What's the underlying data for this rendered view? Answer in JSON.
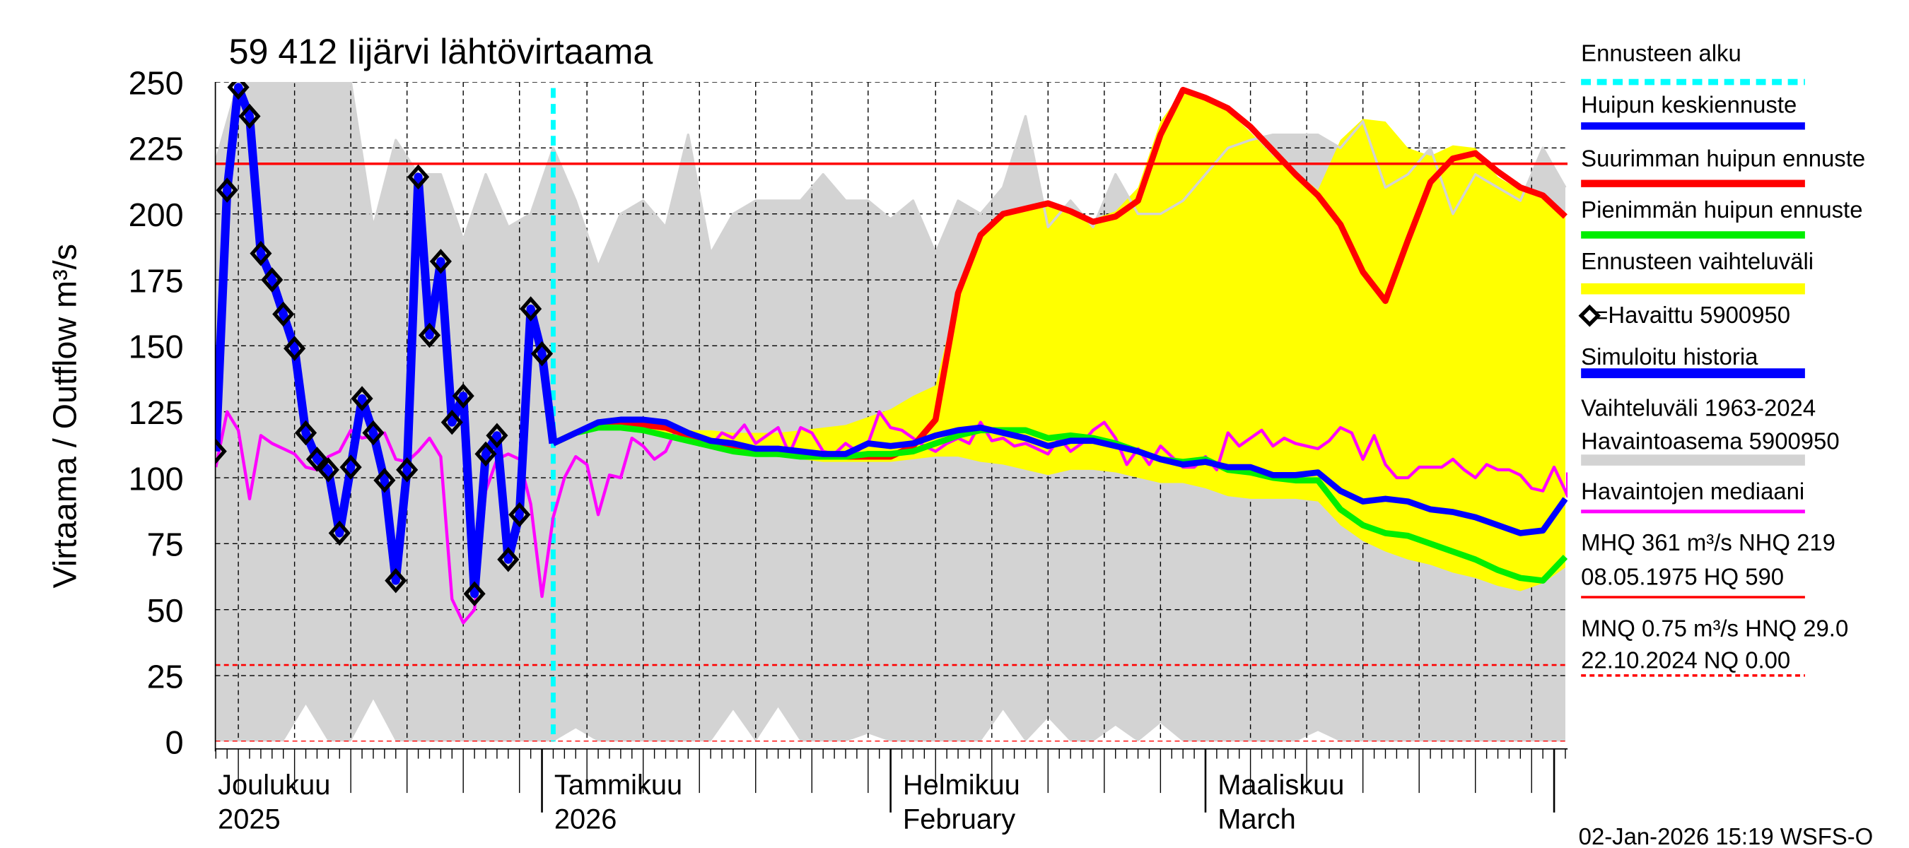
{
  "chart_data": {
    "type": "line",
    "title": "59 412 Iijärvi lähtövirtaama",
    "ylabel": "Virtaama / Outflow    m³/s",
    "xlabel": "",
    "ylim": [
      0,
      250
    ],
    "xlim": [
      "2025-12-03",
      "2026-04-02"
    ],
    "grid": true,
    "legend_position": "right",
    "y_ticks": [
      "0",
      "25",
      "50",
      "75",
      "100",
      "125",
      "150",
      "175",
      "200",
      "225",
      "250"
    ],
    "month_labels": [
      {
        "date": "2025-12-01",
        "line1": "Joulukuu",
        "line2": "2025"
      },
      {
        "date": "2026-01-01",
        "line1": "Tammikuu",
        "line2": "2026"
      },
      {
        "date": "2026-02-01",
        "line1": "Helmikuu",
        "line2": "February"
      },
      {
        "date": "2026-03-01",
        "line1": "Maaliskuu",
        "line2": "March"
      }
    ],
    "forecast_start": "2026-01-02",
    "reference_lines": [
      {
        "name": "NHQ",
        "value": 219,
        "style": "solid",
        "color": "#ff0000"
      },
      {
        "name": "HNQ",
        "value": 29,
        "style": "dashed",
        "color": "#ff0000"
      },
      {
        "name": "NQ",
        "value": 0,
        "style": "dashed",
        "color": "#ff0000"
      }
    ],
    "series": {
      "observed": {
        "name": "=Havaittu 5900950",
        "start": "2025-12-03",
        "step_days": 1,
        "values": [
          110,
          209,
          248,
          237,
          185,
          175,
          162,
          149,
          117,
          107,
          103,
          79,
          104,
          130,
          117,
          99,
          61,
          103,
          214,
          154,
          182,
          121,
          131,
          56,
          109,
          116,
          69,
          86,
          164,
          147
        ]
      },
      "simulated_history": {
        "name": "Simuloitu historia",
        "color": "#0000ff",
        "start": "2025-12-03",
        "step_days": 1,
        "values": [
          110,
          209,
          248,
          237,
          185,
          175,
          162,
          149,
          117,
          107,
          103,
          79,
          104,
          130,
          117,
          99,
          61,
          103,
          214,
          154,
          182,
          121,
          131,
          56,
          109,
          116,
          69,
          86,
          164,
          147
        ]
      },
      "forecast_mean": {
        "name": "Huipun keskiennuste",
        "color": "#0000ff",
        "start": "2026-01-02",
        "step_days": 2,
        "values": [
          113,
          117,
          121,
          122,
          122,
          121,
          117,
          114,
          113,
          111,
          111,
          110,
          109,
          109,
          113,
          112,
          113,
          116,
          118,
          119,
          117,
          115,
          112,
          114,
          114,
          112,
          110,
          107,
          105,
          106,
          104,
          104,
          101,
          101,
          102,
          95,
          91,
          92,
          91,
          88,
          87,
          85,
          82,
          79,
          80,
          92
        ]
      },
      "forecast_max": {
        "name": "Suurimman huipun ennuste",
        "color": "#ff0000",
        "start": "2026-01-02",
        "step_days": 2,
        "values": [
          113,
          117,
          120,
          120,
          120,
          119,
          116,
          113,
          111,
          110,
          109,
          109,
          108,
          108,
          108,
          108,
          112,
          122,
          170,
          192,
          200,
          202,
          204,
          201,
          197,
          199,
          205,
          230,
          247,
          244,
          240,
          233,
          224,
          215,
          207,
          196,
          178,
          167,
          190,
          212,
          221,
          223,
          216,
          210,
          207,
          199
        ]
      },
      "forecast_min": {
        "name": "Pienimmän huipun ennuste",
        "color": "#00ee00",
        "start": "2026-01-02",
        "step_days": 2,
        "values": [
          113,
          117,
          119,
          119,
          118,
          116,
          114,
          112,
          110,
          109,
          109,
          108,
          108,
          108,
          109,
          109,
          110,
          113,
          116,
          118,
          118,
          118,
          115,
          116,
          115,
          113,
          110,
          107,
          106,
          107,
          103,
          102,
          100,
          99,
          99,
          88,
          82,
          79,
          78,
          75,
          72,
          69,
          65,
          62,
          61,
          70
        ]
      },
      "forecast_range": {
        "name": "Ennusteen vaihteluväli",
        "color": "#ffff00",
        "start": "2026-01-02",
        "step_days": 2,
        "upper": [
          113,
          118,
          121,
          122,
          122,
          121,
          118,
          118,
          117,
          117,
          117,
          118,
          119,
          120,
          123,
          126,
          131,
          135,
          170,
          193,
          200,
          203,
          205,
          201,
          198,
          201,
          210,
          235,
          247,
          244,
          239,
          231,
          222,
          216,
          209,
          228,
          236,
          235,
          225,
          222,
          226,
          225,
          214,
          209,
          208,
          200
        ],
        "lower": [
          113,
          117,
          119,
          119,
          118,
          116,
          114,
          112,
          111,
          109,
          108,
          107,
          106,
          106,
          106,
          106,
          107,
          108,
          108,
          106,
          105,
          103,
          101,
          103,
          103,
          102,
          100,
          98,
          98,
          96,
          93,
          92,
          92,
          92,
          91,
          82,
          76,
          72,
          69,
          67,
          64,
          62,
          59,
          57,
          60,
          66
        ]
      },
      "historical_range": {
        "name": "Vaihteluväli 1963-2024 Havaintoasema 5900950",
        "color": "#d3d3d3",
        "start": "2025-12-03",
        "step_days": 2,
        "upper": [
          220,
          250,
          250,
          250,
          250,
          250,
          250,
          195,
          228,
          215,
          215,
          190,
          215,
          195,
          200,
          225,
          205,
          180,
          200,
          205,
          195,
          230,
          185,
          200,
          205,
          205,
          205,
          215,
          205,
          205,
          198,
          205,
          185,
          205,
          200,
          210,
          237,
          195,
          205,
          195,
          215,
          200,
          200,
          205,
          215,
          225,
          228,
          230,
          230,
          230,
          225,
          235,
          210,
          215,
          225,
          200,
          215,
          210,
          205,
          225,
          210
        ],
        "lower": [
          0,
          0,
          0,
          0,
          14,
          0,
          0,
          16,
          0,
          0,
          0,
          0,
          0,
          0,
          0,
          0,
          5,
          0,
          0,
          0,
          0,
          0,
          0,
          12,
          0,
          13,
          0,
          0,
          0,
          3,
          0,
          0,
          0,
          0,
          0,
          12,
          0,
          9,
          0,
          0,
          6,
          0,
          7,
          0,
          0,
          0,
          0,
          0,
          0,
          4,
          0,
          0,
          0,
          0,
          0,
          0,
          0,
          0,
          0,
          0,
          0
        ]
      },
      "median": {
        "name": "Havaintojen mediaani",
        "color": "#ff00ff",
        "start": "2025-12-03",
        "step_days": 1,
        "values": [
          104,
          125,
          118,
          92,
          116,
          113,
          111,
          109,
          104,
          103,
          108,
          110,
          118,
          115,
          116,
          117,
          107,
          106,
          110,
          115,
          108,
          54,
          45,
          50,
          95,
          107,
          109,
          107,
          90,
          55,
          85,
          100,
          108,
          105,
          86,
          101,
          100,
          115,
          112,
          107,
          110,
          119,
          116,
          113,
          112,
          117,
          115,
          120,
          113,
          116,
          119,
          109,
          119,
          117,
          110,
          109,
          113,
          110,
          113,
          125,
          119,
          118,
          115,
          112,
          110,
          113,
          115,
          113,
          121,
          114,
          115,
          112,
          113,
          111,
          109,
          115,
          110,
          113,
          118,
          121,
          115,
          105,
          111,
          105,
          112,
          108,
          104,
          104,
          108,
          103,
          117,
          112,
          115,
          118,
          112,
          115,
          113,
          112,
          111,
          114,
          119,
          117,
          107,
          116,
          105,
          100,
          100,
          104,
          104,
          104,
          107,
          103,
          100,
          105,
          103,
          103,
          101,
          96,
          95,
          104,
          95,
          93,
          102
        ]
      }
    }
  },
  "legend": {
    "forecast_start": "Ennusteen alku",
    "mean": "Huipun keskiennuste",
    "max": "Suurimman huipun ennuste",
    "min": "Pienimmän huipun ennuste",
    "range": "Ennusteen vaihteluväli",
    "observed": "=Havaittu 5900950",
    "simulated": "Simuloitu historia",
    "hist_range_1": "Vaihteluväli 1963-2024",
    "hist_range_2": "Havaintoasema 5900950",
    "median": "Havaintojen mediaani",
    "mhq_1": "MHQ  361 m³/s NHQ  219",
    "mhq_2": "08.05.1975 HQ  590",
    "mnq_1": "MNQ 0.75 m³/s HNQ 29.0",
    "mnq_2": "22.10.2024 NQ 0.00"
  },
  "colors": {
    "cyan": "#00ffff",
    "blue": "#0000ff",
    "red": "#ff0000",
    "green": "#00ee00",
    "yellow": "#ffff00",
    "grey": "#d3d3d3",
    "magenta": "#ff00ff"
  },
  "footer": "02-Jan-2026 15:19 WSFS-O"
}
